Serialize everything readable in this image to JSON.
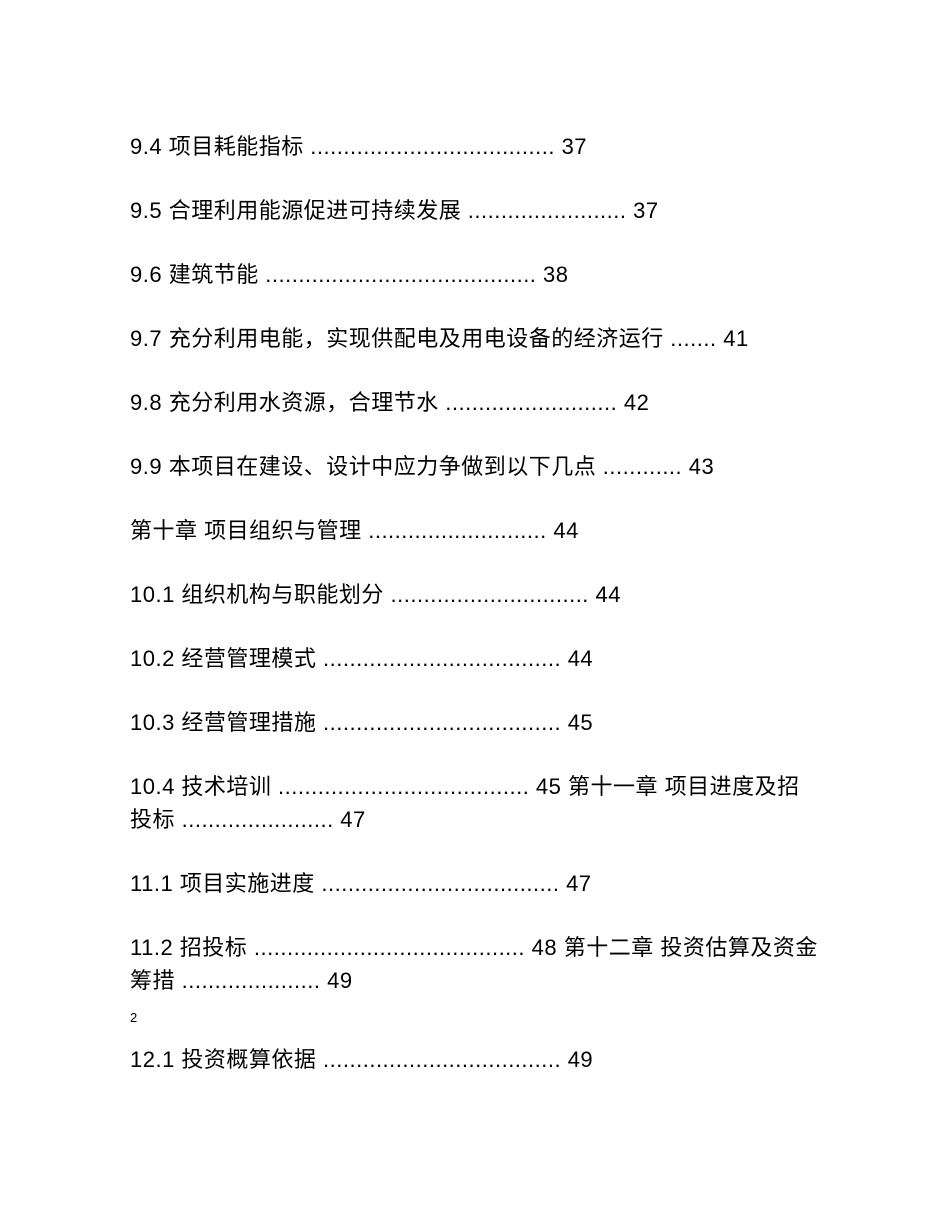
{
  "document": {
    "background_color": "#ffffff",
    "text_color": "#000000",
    "body_fontsize": 22,
    "footer_fontsize": 13
  },
  "toc": {
    "entries": [
      "9.4 项目耗能指标 ..................................... 37",
      "9.5 合理利用能源促进可持续发展 ........................ 37",
      "9.6 建筑节能 ......................................... 38",
      "9.7 充分利用电能，实现供配电及用电设备的经济运行 ....... 41",
      "9.8 充分利用水资源，合理节水 .......................... 42",
      "9.9 本项目在建设、设计中应力争做到以下几点 ............ 43",
      "第十章 项目组织与管理 ........................... 44",
      "10.1 组织机构与职能划分 .............................. 44",
      "10.2 经营管理模式 .................................... 44",
      "10.3 经营管理措施 .................................... 45",
      "10.4 技术培训 ...................................... 45 第十一章 项目进度及招投标 ....................... 47",
      "11.1 项目实施进度 .................................... 47",
      "11.2 招投标 ......................................... 48 第十二章 投资估算及资金筹措 ..................... 49"
    ],
    "footer_page_number": "2",
    "entry_after_footer": "12.1 投资概算依据 .................................... 49"
  }
}
